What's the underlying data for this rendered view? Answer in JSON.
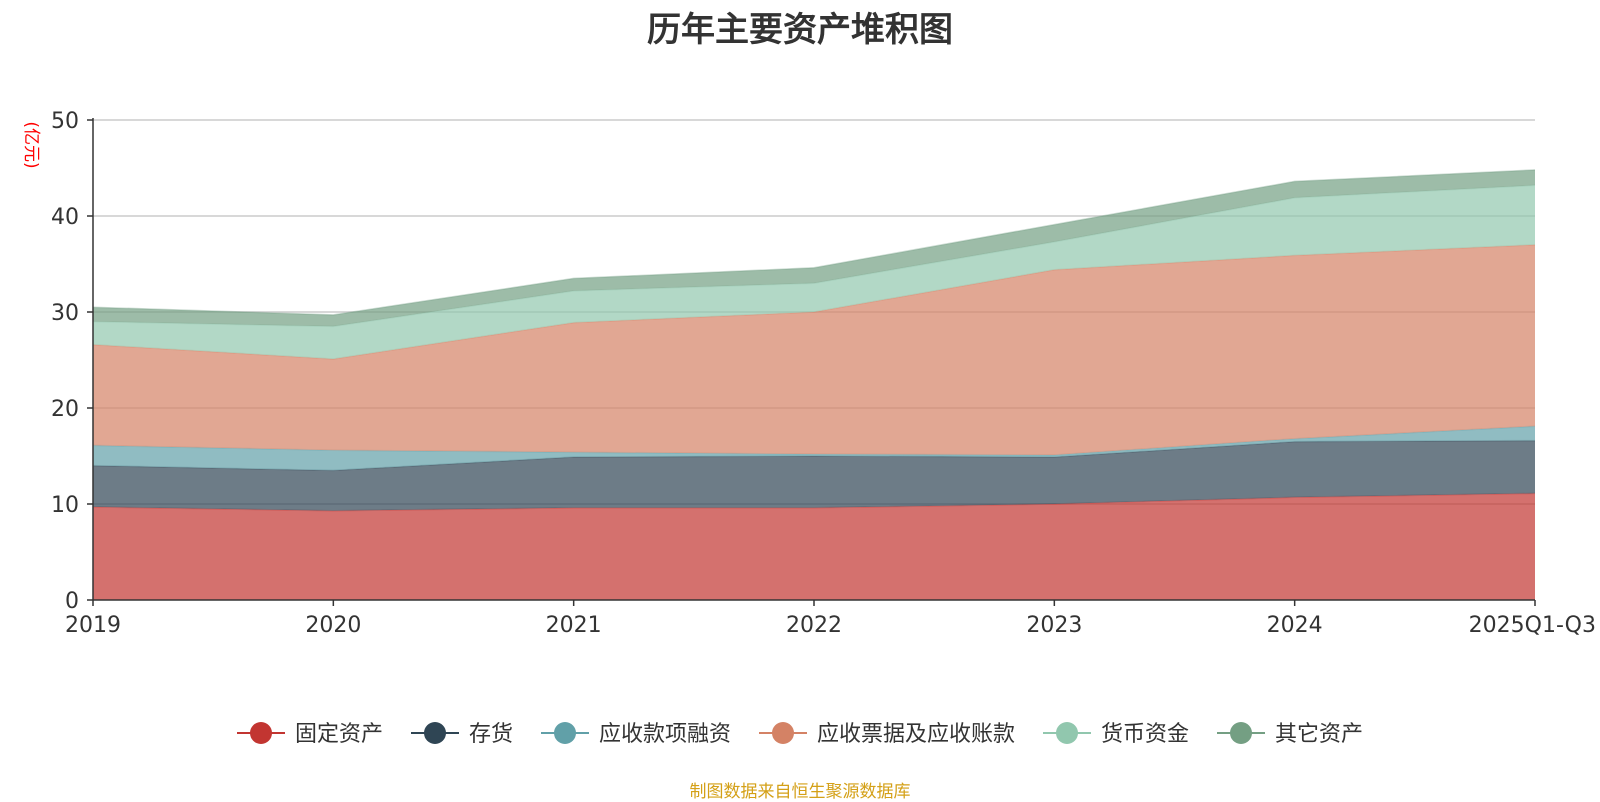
{
  "chart_data": {
    "type": "area",
    "stacked": true,
    "title": "历年主要资产堆积图",
    "ylabel": "(亿元)",
    "xlabel": "",
    "categories": [
      "2019",
      "2020",
      "2021",
      "2022",
      "2023",
      "2024",
      "2025Q1-Q3"
    ],
    "ylim": [
      0,
      50
    ],
    "yticks": [
      0,
      10,
      20,
      30,
      40,
      50
    ],
    "grid": true,
    "legend_position": "bottom",
    "series": [
      {
        "name": "固定资产",
        "color": "#c23531",
        "values": [
          9.7,
          9.3,
          9.6,
          9.6,
          10.0,
          10.7,
          11.1
        ]
      },
      {
        "name": "存货",
        "color": "#2f4554",
        "values": [
          4.3,
          4.2,
          5.3,
          5.4,
          4.9,
          5.8,
          5.5
        ]
      },
      {
        "name": "应收款项融资",
        "color": "#61a0a8",
        "values": [
          2.1,
          2.1,
          0.5,
          0.2,
          0.2,
          0.3,
          1.5
        ]
      },
      {
        "name": "应收票据及应收账款",
        "color": "#d48265",
        "values": [
          10.5,
          9.5,
          13.5,
          14.8,
          19.3,
          19.1,
          18.9
        ]
      },
      {
        "name": "货币资金",
        "color": "#91c7ae",
        "values": [
          2.4,
          3.4,
          3.3,
          3.0,
          2.9,
          6.0,
          6.2
        ]
      },
      {
        "name": "其它资产",
        "color": "#749f83",
        "values": [
          1.5,
          1.2,
          1.3,
          1.6,
          1.8,
          1.7,
          1.6
        ]
      }
    ],
    "source_note": "制图数据来自恒生聚源数据库"
  }
}
